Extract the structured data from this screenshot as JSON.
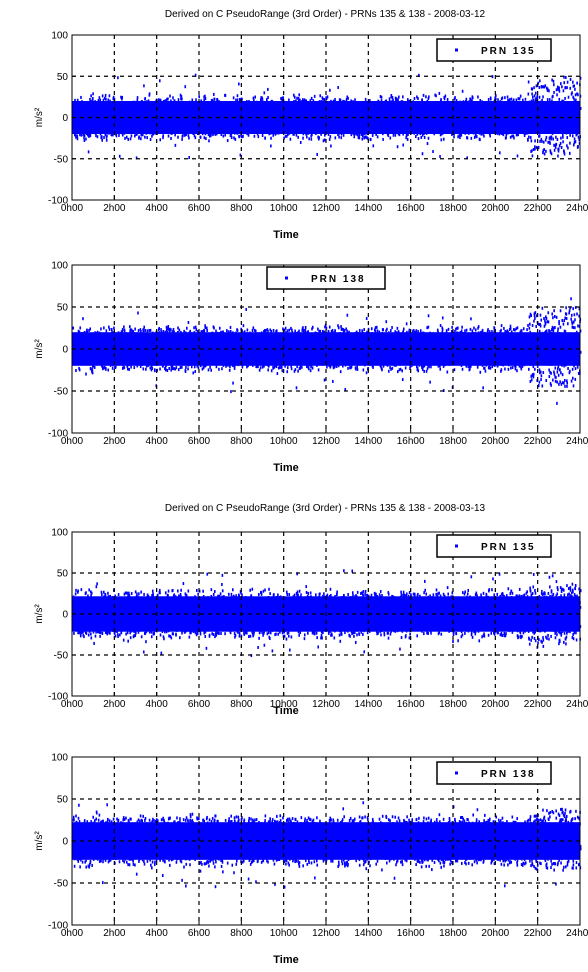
{
  "chart_data": [
    {
      "type": "scatter",
      "title": "Derived on C PseudoRange (3rd Order) - PRNs 135 & 138 - 2008-03-12",
      "xlabel": "Time",
      "ylabel": "m/s²",
      "xlim": [
        0,
        24
      ],
      "ylim": [
        -100,
        100
      ],
      "x_ticks": [
        "0h00",
        "2h00",
        "4h00",
        "6h00",
        "8h00",
        "10h00",
        "12h00",
        "14h00",
        "16h00",
        "18h00",
        "20h00",
        "22h00",
        "24h00"
      ],
      "y_ticks": [
        "100",
        "50",
        "0",
        "-50",
        "-100"
      ],
      "grid": true,
      "legend_position": "top-right",
      "series": [
        {
          "name": "PRN 135",
          "color": "#0000ff",
          "band": 25,
          "late_band": 45
        }
      ]
    },
    {
      "type": "scatter",
      "title": "",
      "xlabel": "Time",
      "ylabel": "m/s²",
      "xlim": [
        0,
        24
      ],
      "ylim": [
        -100,
        100
      ],
      "x_ticks": [
        "0h00",
        "2h00",
        "4h00",
        "6h00",
        "8h00",
        "10h00",
        "12h00",
        "14h00",
        "16h00",
        "18h00",
        "20h00",
        "22h00",
        "24h00"
      ],
      "y_ticks": [
        "100",
        "50",
        "0",
        "-50",
        "-100"
      ],
      "grid": true,
      "legend_position": "top-center",
      "series": [
        {
          "name": "PRN 138",
          "color": "#0000ff",
          "band": 25,
          "late_band": 45
        }
      ]
    },
    {
      "type": "scatter",
      "title": "Derived on C PseudoRange (3rd Order) - PRNs 135 & 138 - 2008-03-13",
      "xlabel": "Time",
      "ylabel": "m/s²",
      "xlim": [
        0,
        24
      ],
      "ylim": [
        -100,
        100
      ],
      "x_ticks": [
        "0h00",
        "2h00",
        "4h00",
        "6h00",
        "8h00",
        "10h00",
        "12h00",
        "14h00",
        "16h00",
        "18h00",
        "20h00",
        "22h00",
        "24h00"
      ],
      "y_ticks": [
        "100",
        "50",
        "0",
        "-50",
        "-100"
      ],
      "grid": true,
      "legend_position": "top-right",
      "series": [
        {
          "name": "PRN 135",
          "color": "#0000ff",
          "band": 27,
          "late_band": 35
        }
      ]
    },
    {
      "type": "scatter",
      "title": "",
      "xlabel": "Time",
      "ylabel": "m/s²",
      "xlim": [
        0,
        24
      ],
      "ylim": [
        -100,
        100
      ],
      "x_ticks": [
        "0h00",
        "2h00",
        "4h00",
        "6h00",
        "8h00",
        "10h00",
        "12h00",
        "14h00",
        "16h00",
        "18h00",
        "20h00",
        "22h00",
        "24h00"
      ],
      "y_ticks": [
        "100",
        "50",
        "0",
        "-50",
        "-100"
      ],
      "grid": true,
      "legend_position": "top-right",
      "series": [
        {
          "name": "PRN 138",
          "color": "#0000ff",
          "band": 28,
          "late_band": 35
        }
      ]
    }
  ]
}
